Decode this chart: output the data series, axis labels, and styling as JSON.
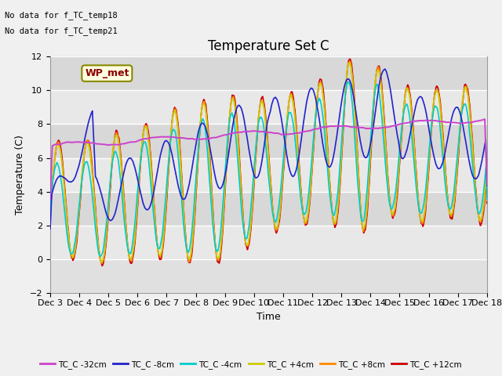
{
  "title": "Temperature Set C",
  "xlabel": "Time",
  "ylabel": "Temperature (C)",
  "ylim": [
    -2,
    12
  ],
  "xlim": [
    0,
    15
  ],
  "text_lines": [
    "No data for f_TC_temp18",
    "No data for f_TC_temp21"
  ],
  "wp_met_label": "WP_met",
  "legend_entries": [
    "TC_C -32cm",
    "TC_C -8cm",
    "TC_C -4cm",
    "TC_C +4cm",
    "TC_C +8cm",
    "TC_C +12cm"
  ],
  "legend_colors": [
    "#cc44cc",
    "#2222cc",
    "#00cccc",
    "#cccc00",
    "#ff8800",
    "#cc0000"
  ],
  "fig_facecolor": "#f0f0f0",
  "axes_facecolor": "#e0e0e0",
  "grid_color": "#ffffff",
  "title_fontsize": 12,
  "label_fontsize": 9,
  "tick_fontsize": 8,
  "n_days": 15,
  "pts_per_day": 96
}
